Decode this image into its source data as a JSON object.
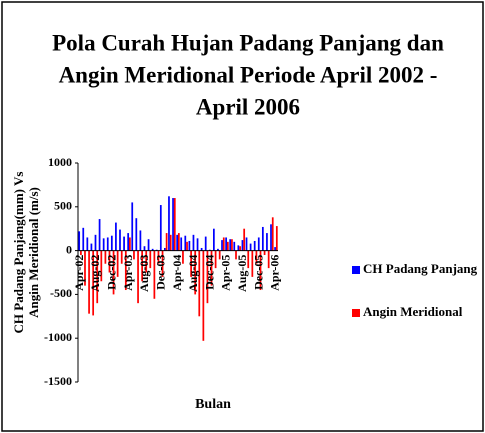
{
  "chart_data": {
    "type": "bar",
    "title": [
      "Pola Curah Hujan Padang Panjang dan",
      "Angin Meridional Periode April 2002 -",
      "April 2006"
    ],
    "y_label": [
      "CH Padang Panjang(mm) Vs",
      "Angin Meridional (m/s)"
    ],
    "x_label": "Bulan",
    "categories": [
      "Apr-02",
      null,
      null,
      null,
      "Aug-02",
      null,
      null,
      null,
      "Dec-02",
      null,
      null,
      null,
      "Apr-03",
      null,
      null,
      null,
      "Aug-03",
      null,
      null,
      null,
      "Dec-03",
      null,
      null,
      null,
      "Apr-04",
      null,
      null,
      null,
      "Aug-04",
      null,
      null,
      null,
      "Dec-04",
      null,
      null,
      null,
      "Apr-05",
      null,
      null,
      null,
      "Aug-05",
      null,
      null,
      null,
      "Dec-05",
      null,
      null,
      null,
      "Apr-06"
    ],
    "series": [
      {
        "name": "CH Padang Panjang",
        "color": "#0000ff",
        "values": [
          220,
          260,
          150,
          80,
          180,
          360,
          140,
          150,
          170,
          320,
          240,
          160,
          200,
          550,
          370,
          230,
          50,
          130,
          20,
          10,
          520,
          30,
          620,
          600,
          180,
          150,
          170,
          110,
          180,
          140,
          30,
          160,
          10,
          250,
          20,
          120,
          150,
          130,
          100,
          60,
          120,
          150,
          80,
          110,
          150,
          270,
          200,
          300,
          40
        ]
      },
      {
        "name": "Angin Meridional",
        "color": "#ff0000",
        "values": [
          -50,
          -400,
          -720,
          -740,
          -600,
          -350,
          -150,
          -250,
          -500,
          -300,
          -150,
          -450,
          150,
          -100,
          -600,
          -350,
          -250,
          -200,
          -550,
          -150,
          -300,
          200,
          180,
          600,
          200,
          -150,
          100,
          -300,
          -500,
          -750,
          -1030,
          -600,
          -400,
          -200,
          -100,
          150,
          100,
          130,
          -100,
          50,
          250,
          -200,
          -300,
          -150,
          -450,
          -50,
          -200,
          380,
          280
        ]
      }
    ],
    "ylim": [
      -1500,
      1000
    ],
    "yticks": [
      -1500,
      -1000,
      -500,
      0,
      500,
      1000
    ],
    "legend": "right"
  }
}
